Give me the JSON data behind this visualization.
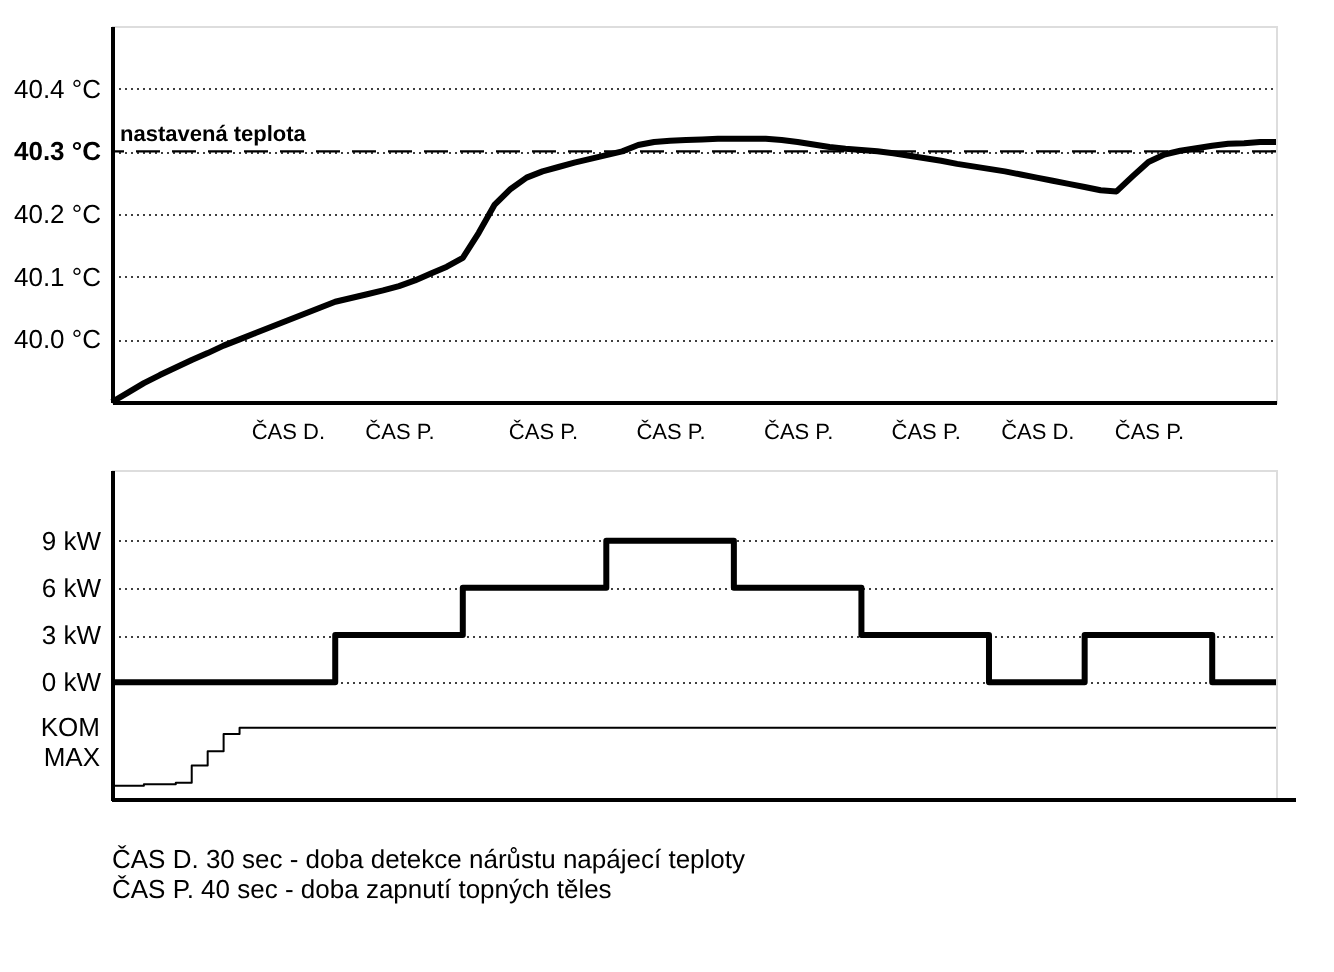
{
  "chart_data": [
    {
      "type": "line",
      "tick_labels": "y",
      "grid": "y",
      "ylim": [
        39.9,
        40.5
      ],
      "categories": [
        null,
        null,
        null,
        null,
        null,
        null,
        null,
        null,
        null,
        null,
        null,
        null,
        null,
        null,
        null,
        null,
        null,
        null,
        null,
        null,
        null,
        null,
        null,
        null,
        null,
        null,
        null,
        null,
        null,
        null,
        null,
        null,
        null,
        null,
        null,
        null,
        null,
        null,
        null,
        null,
        null,
        null,
        null,
        null,
        null,
        null,
        null,
        null,
        null,
        null,
        null,
        null,
        null,
        null,
        null,
        null,
        null,
        null,
        null,
        null,
        null,
        null,
        null,
        null,
        null,
        null,
        null,
        null,
        null,
        null,
        null,
        null,
        null,
        null
      ],
      "yticks": [
        {
          "value": 40.0,
          "label": "40.0 °C"
        },
        {
          "value": 40.1,
          "label": "40.1 °C"
        },
        {
          "value": 40.2,
          "label": "40.2 °C"
        },
        {
          "value": 40.3,
          "label": "40.3 °C"
        },
        {
          "value": 40.4,
          "label": "40.4 °C"
        }
      ],
      "series": [
        {
          "color": "#000000",
          "values": [
            39.9,
            39.915,
            39.93,
            39.943,
            39.955,
            39.967,
            39.978,
            39.99,
            40.0,
            40.01,
            40.02,
            40.03,
            40.04,
            40.05,
            40.06,
            40.066,
            40.072,
            40.078,
            40.085,
            40.094,
            40.105,
            40.116,
            40.13,
            40.17,
            40.215,
            40.24,
            40.258,
            40.268,
            40.275,
            40.282,
            40.288,
            40.294,
            40.3,
            40.31,
            40.315,
            40.317,
            40.318,
            40.319,
            40.32,
            40.32,
            40.32,
            40.32,
            40.318,
            40.315,
            40.311,
            40.307,
            40.304,
            40.302,
            40.3,
            40.297,
            40.293,
            40.289,
            40.285,
            40.28,
            40.276,
            40.272,
            40.268,
            40.263,
            40.258,
            40.253,
            40.248,
            40.243,
            40.238,
            40.236,
            40.26,
            40.283,
            40.295,
            40.301,
            40.305,
            40.309,
            40.312,
            40.313,
            40.315,
            40.315
          ]
        }
      ],
      "ref_lines": [
        {
          "axis": "y",
          "value": 40.3,
          "label": "nastavená teplota",
          "line_style": "dashed"
        }
      ]
    },
    {
      "type": "step",
      "grid": "y",
      "ylim": [
        -7.5,
        13.5
      ],
      "categories": [
        null,
        null,
        null,
        null,
        null,
        null,
        null,
        null,
        null,
        null,
        null,
        "ČAS D.",
        null,
        null,
        null,
        null,
        null,
        null,
        "ČAS P.",
        null,
        null,
        null,
        null,
        null,
        null,
        null,
        null,
        "ČAS P.",
        null,
        null,
        null,
        null,
        null,
        null,
        null,
        "ČAS P.",
        null,
        null,
        null,
        null,
        null,
        null,
        null,
        "ČAS P.",
        null,
        null,
        null,
        null,
        null,
        null,
        null,
        "ČAS P.",
        null,
        null,
        null,
        null,
        null,
        null,
        "ČAS D.",
        null,
        null,
        null,
        null,
        null,
        null,
        "ČAS P.",
        null,
        null,
        null,
        null,
        null,
        null,
        null,
        null
      ],
      "yticks": [
        {
          "value": 0,
          "label": "0 kW"
        },
        {
          "value": 3,
          "label": "3 kW"
        },
        {
          "value": 6,
          "label": "6 kW"
        },
        {
          "value": 9,
          "label": "9 kW"
        }
      ],
      "series": [
        {
          "color": "#000000",
          "values": [
            0,
            0,
            0,
            0,
            0,
            0,
            0,
            0,
            0,
            0,
            0,
            0,
            0,
            0,
            3,
            3,
            3,
            3,
            3,
            3,
            3,
            3,
            6,
            6,
            6,
            6,
            6,
            6,
            6,
            6,
            6,
            9,
            9,
            9,
            9,
            9,
            9,
            9,
            9,
            6,
            6,
            6,
            6,
            6,
            6,
            6,
            6,
            3,
            3,
            3,
            3,
            3,
            3,
            3,
            3,
            0,
            0,
            0,
            0,
            0,
            0,
            3,
            3,
            3,
            3,
            3,
            3,
            3,
            3,
            0,
            0,
            0,
            0,
            0
          ]
        },
        {
          "name": "KOM MAX",
          "color": "#000000",
          "values": [
            -6.6,
            -6.6,
            -6.5,
            -6.5,
            -6.4,
            -5.3,
            -4.4,
            -3.3,
            -2.9,
            -2.9,
            -2.9,
            -2.9,
            -2.9,
            -2.9,
            -2.9,
            -2.9,
            -2.9,
            -2.9,
            -2.9,
            -2.9,
            -2.9,
            -2.9,
            -2.9,
            -2.9,
            -2.9,
            -2.9,
            -2.9,
            -2.9,
            -2.9,
            -2.9,
            -2.9,
            -2.9,
            -2.9,
            -2.9,
            -2.9,
            -2.9,
            -2.9,
            -2.9,
            -2.9,
            -2.9,
            -2.9,
            -2.9,
            -2.9,
            -2.9,
            -2.9,
            -2.9,
            -2.9,
            -2.9,
            -2.9,
            -2.9,
            -2.9,
            -2.9,
            -2.9,
            -2.9,
            -2.9,
            -2.9,
            -2.9,
            -2.9,
            -2.9,
            -2.9,
            -2.9,
            -2.9,
            -2.9,
            -2.9,
            -2.9,
            -2.9,
            -2.9,
            -2.9,
            -2.9,
            -2.9,
            -2.9,
            -2.9,
            -2.9,
            -2.9
          ]
        }
      ],
      "annotations": [
        "ČAS D.  30 sec - doba detekce nárůstu napájecí teploty",
        "ČAS P.   40 sec - doba zapnutí topných těles"
      ]
    }
  ]
}
